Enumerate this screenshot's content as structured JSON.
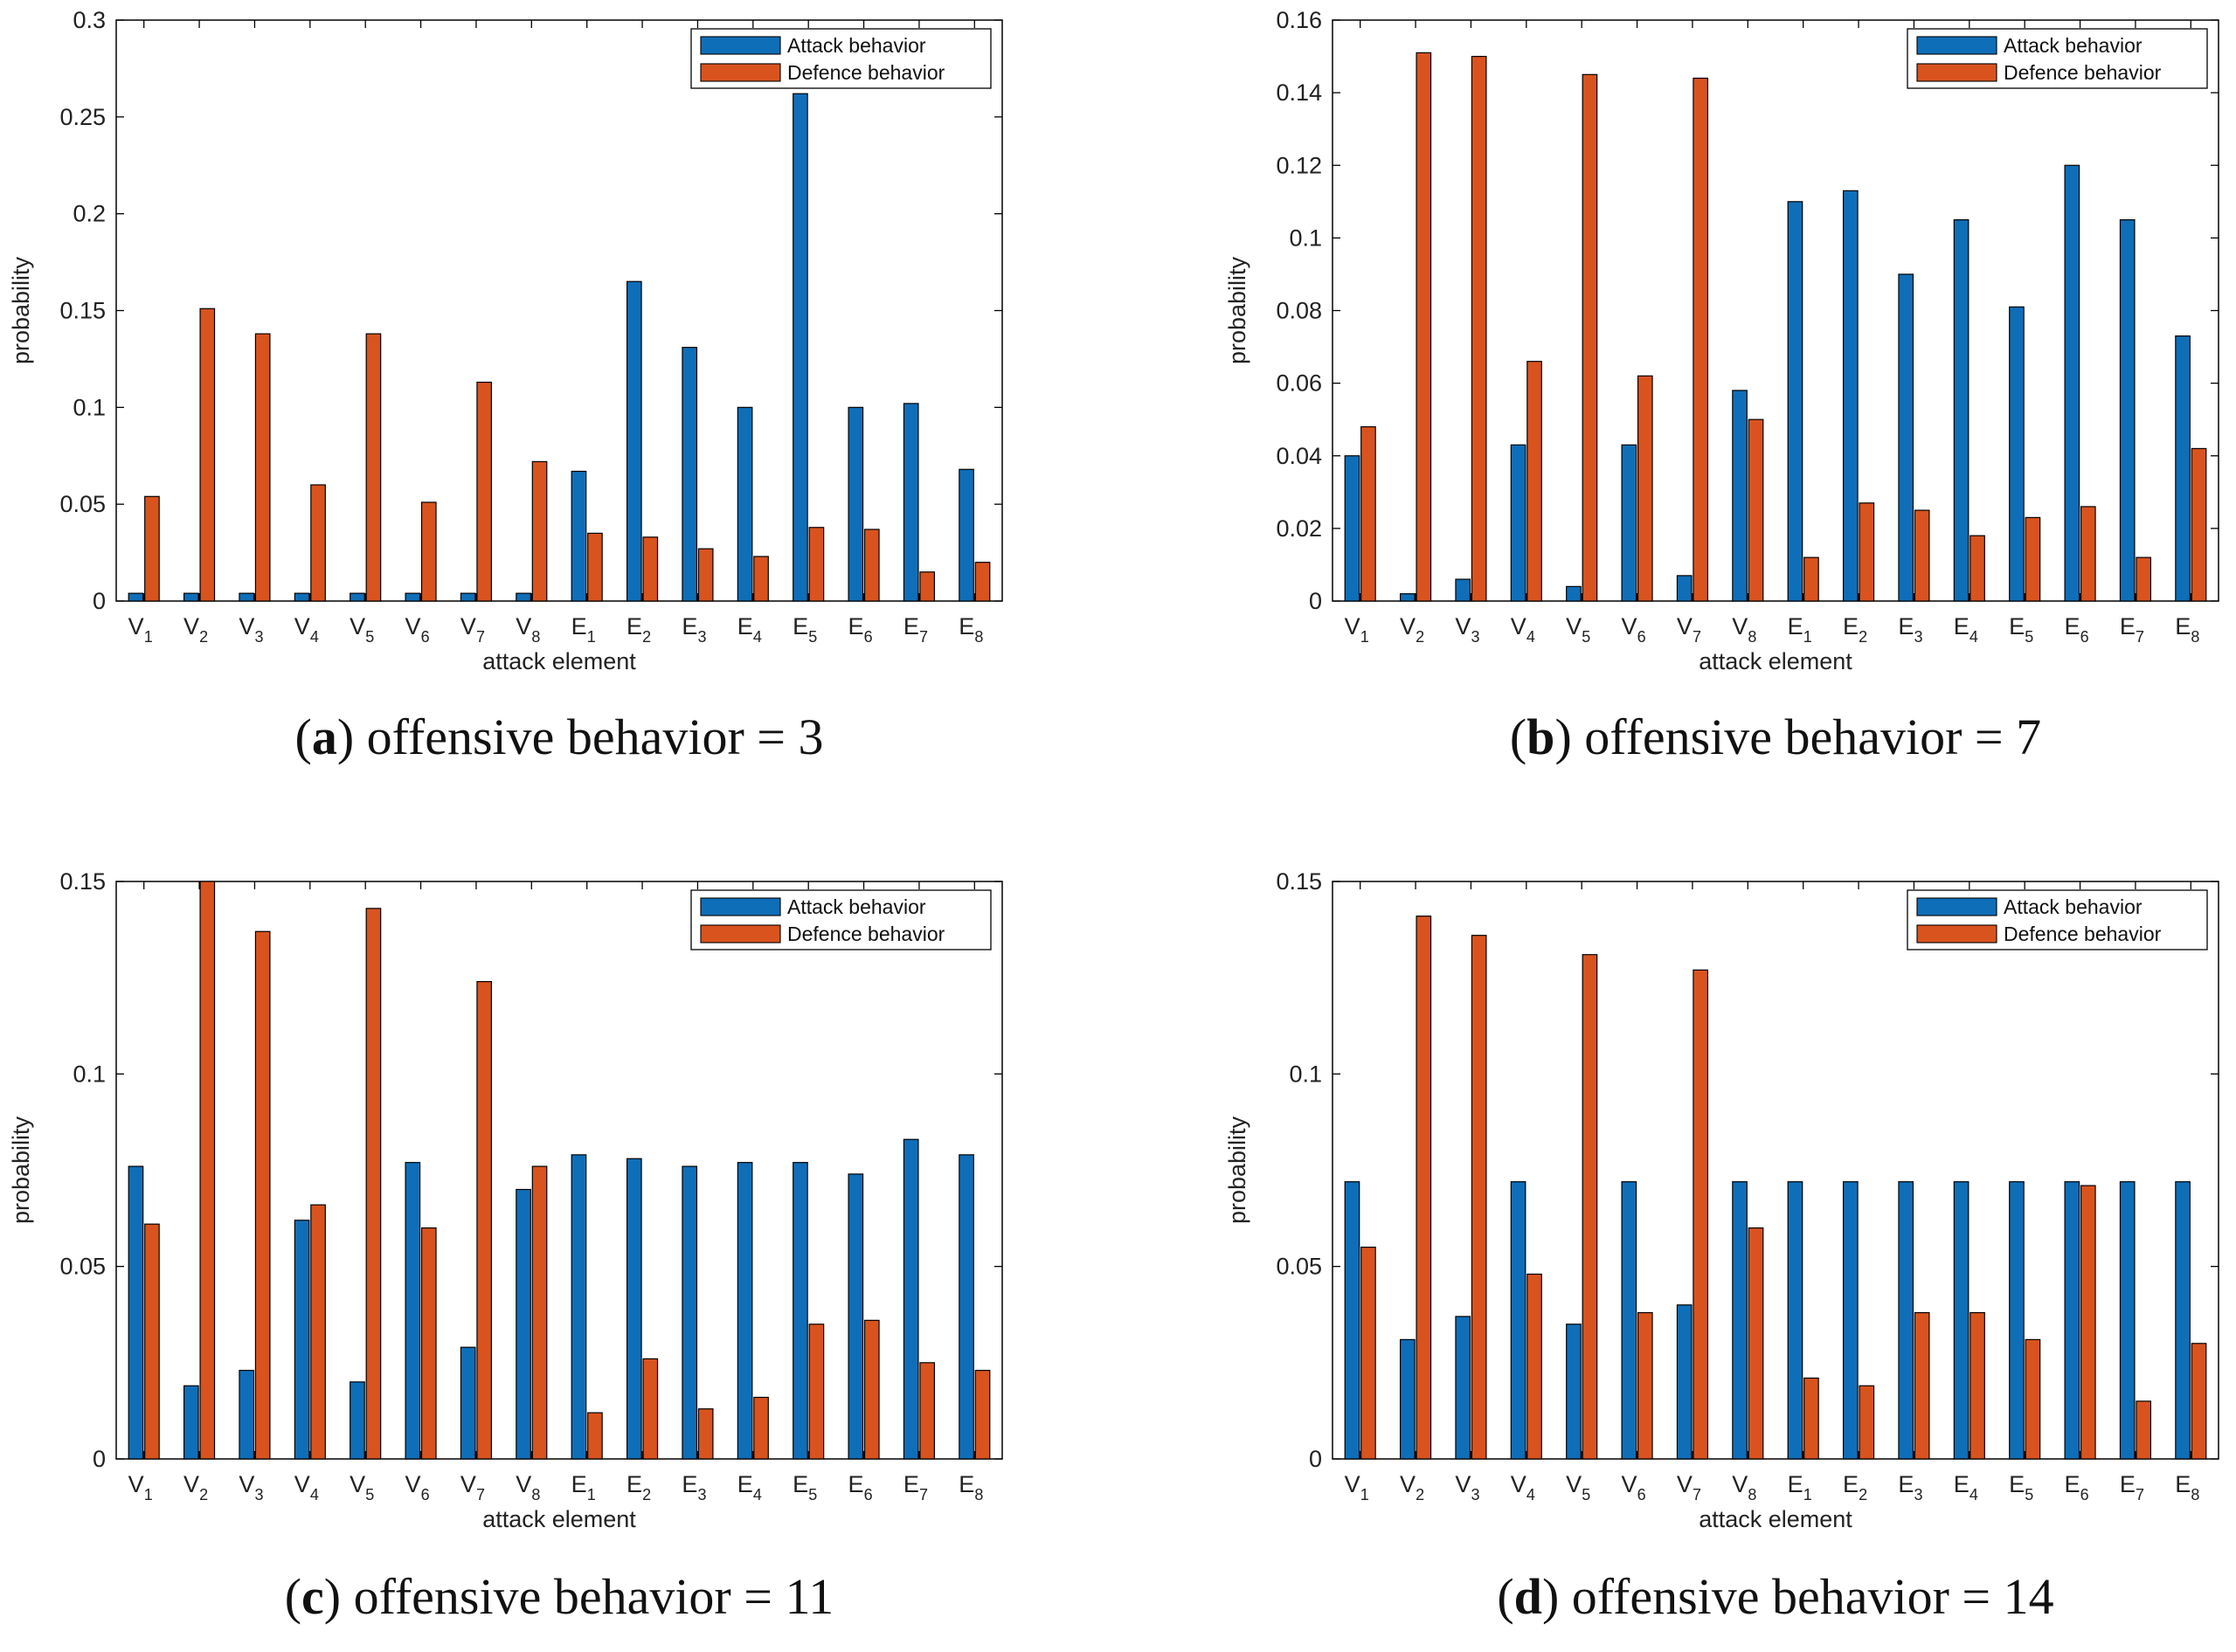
{
  "colors": {
    "attack": "#0f6eb8",
    "defence": "#d9531e",
    "axis": "#000000"
  },
  "chart_data": [
    {
      "type": "bar",
      "caption_letter": "a",
      "caption_text": " offensive behavior = 3",
      "categories": [
        [
          "V",
          "1"
        ],
        [
          "V",
          "2"
        ],
        [
          "V",
          "3"
        ],
        [
          "V",
          "4"
        ],
        [
          "V",
          "5"
        ],
        [
          "V",
          "6"
        ],
        [
          "V",
          "7"
        ],
        [
          "V",
          "8"
        ],
        [
          "E",
          "1"
        ],
        [
          "E",
          "2"
        ],
        [
          "E",
          "3"
        ],
        [
          "E",
          "4"
        ],
        [
          "E",
          "5"
        ],
        [
          "E",
          "6"
        ],
        [
          "E",
          "7"
        ],
        [
          "E",
          "8"
        ]
      ],
      "series": [
        {
          "name": "Attack behavior",
          "values": [
            0.004,
            0.004,
            0.004,
            0.004,
            0.004,
            0.004,
            0.004,
            0.004,
            0.067,
            0.165,
            0.131,
            0.1,
            0.262,
            0.1,
            0.102,
            0.068
          ]
        },
        {
          "name": "Defence behavior",
          "values": [
            0.054,
            0.151,
            0.138,
            0.06,
            0.138,
            0.051,
            0.113,
            0.072,
            0.035,
            0.033,
            0.027,
            0.023,
            0.038,
            0.037,
            0.015,
            0.02
          ]
        }
      ],
      "xlabel": "attack element",
      "ylabel": "probability",
      "ylim": [
        0,
        0.3
      ],
      "yticks": [
        0,
        0.05,
        0.1,
        0.15,
        0.2,
        0.25,
        0.3
      ],
      "ytick_labels": [
        "0",
        "0.05",
        "0.1",
        "0.15",
        "0.2",
        "0.25",
        "0.3"
      ],
      "legend": "top-right"
    },
    {
      "type": "bar",
      "caption_letter": "b",
      "caption_text": " offensive behavior = 7",
      "categories": [
        [
          "V",
          "1"
        ],
        [
          "V",
          "2"
        ],
        [
          "V",
          "3"
        ],
        [
          "V",
          "4"
        ],
        [
          "V",
          "5"
        ],
        [
          "V",
          "6"
        ],
        [
          "V",
          "7"
        ],
        [
          "V",
          "8"
        ],
        [
          "E",
          "1"
        ],
        [
          "E",
          "2"
        ],
        [
          "E",
          "3"
        ],
        [
          "E",
          "4"
        ],
        [
          "E",
          "5"
        ],
        [
          "E",
          "6"
        ],
        [
          "E",
          "7"
        ],
        [
          "E",
          "8"
        ]
      ],
      "series": [
        {
          "name": "Attack behavior",
          "values": [
            0.04,
            0.002,
            0.006,
            0.043,
            0.004,
            0.043,
            0.007,
            0.058,
            0.11,
            0.113,
            0.09,
            0.105,
            0.081,
            0.12,
            0.105,
            0.073
          ]
        },
        {
          "name": "Defence behavior",
          "values": [
            0.048,
            0.151,
            0.15,
            0.066,
            0.145,
            0.062,
            0.144,
            0.05,
            0.012,
            0.027,
            0.025,
            0.018,
            0.023,
            0.026,
            0.012,
            0.042
          ]
        }
      ],
      "xlabel": "attack element",
      "ylabel": "probability",
      "ylim": [
        0,
        0.16
      ],
      "yticks": [
        0,
        0.02,
        0.04,
        0.06,
        0.08,
        0.1,
        0.12,
        0.14,
        0.16
      ],
      "ytick_labels": [
        "0",
        "0.02",
        "0.04",
        "0.06",
        "0.08",
        "0.1",
        "0.12",
        "0.14",
        "0.16"
      ],
      "legend": "top-right"
    },
    {
      "type": "bar",
      "caption_letter": "c",
      "caption_text": " offensive behavior = 11",
      "categories": [
        [
          "V",
          "1"
        ],
        [
          "V",
          "2"
        ],
        [
          "V",
          "3"
        ],
        [
          "V",
          "4"
        ],
        [
          "V",
          "5"
        ],
        [
          "V",
          "6"
        ],
        [
          "V",
          "7"
        ],
        [
          "V",
          "8"
        ],
        [
          "E",
          "1"
        ],
        [
          "E",
          "2"
        ],
        [
          "E",
          "3"
        ],
        [
          "E",
          "4"
        ],
        [
          "E",
          "5"
        ],
        [
          "E",
          "6"
        ],
        [
          "E",
          "7"
        ],
        [
          "E",
          "8"
        ]
      ],
      "series": [
        {
          "name": "Attack behavior",
          "values": [
            0.076,
            0.019,
            0.023,
            0.062,
            0.02,
            0.077,
            0.029,
            0.07,
            0.079,
            0.078,
            0.076,
            0.077,
            0.077,
            0.074,
            0.083,
            0.079
          ]
        },
        {
          "name": "Defence behavior",
          "values": [
            0.061,
            0.15,
            0.137,
            0.066,
            0.143,
            0.06,
            0.124,
            0.076,
            0.012,
            0.026,
            0.013,
            0.016,
            0.035,
            0.036,
            0.025,
            0.023
          ]
        }
      ],
      "xlabel": "attack element",
      "ylabel": "probability",
      "ylim": [
        0,
        0.15
      ],
      "yticks": [
        0,
        0.05,
        0.1,
        0.15
      ],
      "ytick_labels": [
        "0",
        "0.05",
        "0.1",
        "0.15"
      ],
      "legend": "top-right"
    },
    {
      "type": "bar",
      "caption_letter": "d",
      "caption_text": " offensive behavior = 14",
      "categories": [
        [
          "V",
          "1"
        ],
        [
          "V",
          "2"
        ],
        [
          "V",
          "3"
        ],
        [
          "V",
          "4"
        ],
        [
          "V",
          "5"
        ],
        [
          "V",
          "6"
        ],
        [
          "V",
          "7"
        ],
        [
          "V",
          "8"
        ],
        [
          "E",
          "1"
        ],
        [
          "E",
          "2"
        ],
        [
          "E",
          "3"
        ],
        [
          "E",
          "4"
        ],
        [
          "E",
          "5"
        ],
        [
          "E",
          "6"
        ],
        [
          "E",
          "7"
        ],
        [
          "E",
          "8"
        ]
      ],
      "series": [
        {
          "name": "Attack behavior",
          "values": [
            0.072,
            0.031,
            0.037,
            0.072,
            0.035,
            0.072,
            0.04,
            0.072,
            0.072,
            0.072,
            0.072,
            0.072,
            0.072,
            0.072,
            0.072,
            0.072
          ]
        },
        {
          "name": "Defence behavior",
          "values": [
            0.055,
            0.141,
            0.136,
            0.048,
            0.131,
            0.038,
            0.127,
            0.06,
            0.021,
            0.019,
            0.038,
            0.038,
            0.031,
            0.071,
            0.015,
            0.03
          ]
        }
      ],
      "xlabel": "attack element",
      "ylabel": "probability",
      "ylim": [
        0,
        0.15
      ],
      "yticks": [
        0,
        0.05,
        0.1,
        0.15
      ],
      "ytick_labels": [
        "0",
        "0.05",
        "0.1",
        "0.15"
      ],
      "legend": "top-right"
    }
  ]
}
